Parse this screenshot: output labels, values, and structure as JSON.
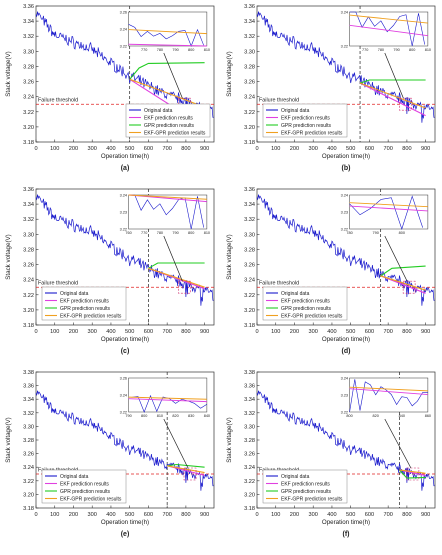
{
  "figure": {
    "panel_labels": [
      "(a)",
      "(b)",
      "(c)",
      "(d)",
      "(e)",
      "(f)"
    ],
    "threshold_label": "Failure threshold",
    "legend_entries": [
      "Original data",
      "EKF prediction results",
      "GPR prediction results",
      "EKF-GPR prediction results"
    ]
  },
  "colors": {
    "original": "#1a1acc",
    "ekf": "#e040e0",
    "gpr": "#22cc22",
    "ekf_gpr": "#f0a020",
    "threshold": "#e02020",
    "axis": "#333333"
  },
  "chart_data": [
    {
      "type": "line",
      "panel": "(a)",
      "xlabel": "Operation time(h)",
      "ylabel": "Stack voltage(V)",
      "xlim": [
        0,
        950
      ],
      "ylim": [
        3.18,
        3.36
      ],
      "xticks": [
        0,
        100,
        200,
        300,
        400,
        500,
        600,
        700,
        800,
        900
      ],
      "yticks": [
        3.18,
        3.2,
        3.22,
        3.24,
        3.26,
        3.28,
        3.3,
        3.32,
        3.34,
        3.36
      ],
      "threshold": 3.23,
      "prediction_start": 500,
      "legend": "bottom-right",
      "ekf": [
        [
          500,
          3.263
        ],
        [
          900,
          3.2
        ]
      ],
      "gpr": [
        [
          500,
          3.263
        ],
        [
          550,
          3.278
        ],
        [
          600,
          3.284
        ],
        [
          900,
          3.285
        ]
      ],
      "ekf_gpr": [
        [
          500,
          3.263
        ],
        [
          700,
          3.245
        ],
        [
          900,
          3.226
        ]
      ],
      "inset": {
        "xlim": [
          760,
          810
        ],
        "ylim": [
          3.22,
          3.26
        ],
        "xticks": [
          770,
          780,
          790,
          800,
          810
        ],
        "yticks": [
          3.22,
          3.24,
          3.26
        ]
      }
    },
    {
      "type": "line",
      "panel": "(b)",
      "xlabel": "Operation time(h)",
      "ylabel": "Stack voltage(V)",
      "xlim": [
        0,
        950
      ],
      "ylim": [
        3.18,
        3.36
      ],
      "xticks": [
        0,
        100,
        200,
        300,
        400,
        500,
        600,
        700,
        800,
        900
      ],
      "yticks": [
        3.18,
        3.2,
        3.22,
        3.24,
        3.26,
        3.28,
        3.3,
        3.32,
        3.34,
        3.36
      ],
      "threshold": 3.23,
      "prediction_start": 550,
      "legend": "bottom-left",
      "ekf": [
        [
          550,
          3.258
        ],
        [
          900,
          3.215
        ]
      ],
      "gpr": [
        [
          550,
          3.258
        ],
        [
          600,
          3.262
        ],
        [
          900,
          3.262
        ]
      ],
      "ekf_gpr": [
        [
          550,
          3.258
        ],
        [
          900,
          3.225
        ]
      ],
      "inset": {
        "xlim": [
          760,
          810
        ],
        "ylim": [
          3.22,
          3.24
        ],
        "xticks": [
          770,
          780,
          790,
          800,
          810
        ],
        "yticks": [
          3.22,
          3.24
        ]
      }
    },
    {
      "type": "line",
      "panel": "(c)",
      "xlabel": "Operation time(h)",
      "ylabel": "Stack voltage(V)",
      "xlim": [
        0,
        950
      ],
      "ylim": [
        3.18,
        3.36
      ],
      "xticks": [
        0,
        100,
        200,
        300,
        400,
        500,
        600,
        700,
        800,
        900
      ],
      "yticks": [
        3.18,
        3.2,
        3.22,
        3.24,
        3.26,
        3.28,
        3.3,
        3.32,
        3.34,
        3.36
      ],
      "threshold": 3.23,
      "prediction_start": 600,
      "legend": "bottom-left",
      "ekf": [
        [
          600,
          3.255
        ],
        [
          900,
          3.228
        ]
      ],
      "gpr": [
        [
          600,
          3.255
        ],
        [
          650,
          3.262
        ],
        [
          900,
          3.262
        ]
      ],
      "ekf_gpr": [
        [
          600,
          3.255
        ],
        [
          900,
          3.23
        ]
      ],
      "inset": {
        "xlim": [
          760,
          810
        ],
        "ylim": [
          3.22,
          3.24
        ],
        "xticks": [
          760,
          770,
          780,
          790,
          800,
          810
        ],
        "yticks": [
          3.22,
          3.23,
          3.24
        ]
      }
    },
    {
      "type": "line",
      "panel": "(d)",
      "xlabel": "Operation time(h)",
      "ylabel": "Stack voltage(V)",
      "xlim": [
        0,
        950
      ],
      "ylim": [
        3.18,
        3.36
      ],
      "xticks": [
        0,
        100,
        200,
        300,
        400,
        500,
        600,
        700,
        800,
        900
      ],
      "yticks": [
        3.18,
        3.2,
        3.22,
        3.24,
        3.26,
        3.28,
        3.3,
        3.32,
        3.34,
        3.36
      ],
      "threshold": 3.23,
      "prediction_start": 660,
      "legend": "bottom-left",
      "ekf": [
        [
          660,
          3.245
        ],
        [
          900,
          3.222
        ]
      ],
      "gpr": [
        [
          660,
          3.245
        ],
        [
          720,
          3.255
        ],
        [
          900,
          3.258
        ]
      ],
      "ekf_gpr": [
        [
          660,
          3.245
        ],
        [
          900,
          3.226
        ]
      ],
      "inset": {
        "xlim": [
          780,
          810
        ],
        "ylim": [
          3.22,
          3.24
        ],
        "xticks": [
          780,
          790,
          800
        ],
        "yticks": [
          3.22,
          3.23,
          3.24
        ]
      }
    },
    {
      "type": "line",
      "panel": "(e)",
      "xlabel": "Operation time(h)",
      "ylabel": "Stack voltage(V)",
      "xlim": [
        0,
        950
      ],
      "ylim": [
        3.18,
        3.38
      ],
      "xticks": [
        0,
        100,
        200,
        300,
        400,
        500,
        600,
        700,
        800,
        900
      ],
      "yticks": [
        3.18,
        3.2,
        3.22,
        3.24,
        3.26,
        3.28,
        3.3,
        3.32,
        3.34,
        3.36,
        3.38
      ],
      "threshold": 3.23,
      "prediction_start": 700,
      "legend": "bottom-left",
      "ekf": [
        [
          700,
          3.242
        ],
        [
          900,
          3.228
        ]
      ],
      "gpr": [
        [
          700,
          3.242
        ],
        [
          750,
          3.244
        ],
        [
          900,
          3.24
        ]
      ],
      "ekf_gpr": [
        [
          700,
          3.242
        ],
        [
          900,
          3.232
        ]
      ],
      "inset": {
        "xlim": [
          790,
          840
        ],
        "ylim": [
          3.22,
          3.26
        ],
        "xticks": [
          790,
          800,
          810,
          820,
          830,
          840
        ],
        "yticks": [
          3.22,
          3.24,
          3.26
        ]
      }
    },
    {
      "type": "line",
      "panel": "(f)",
      "xlabel": "Operation time(h)",
      "ylabel": "Stack voltage(V)",
      "xlim": [
        0,
        950
      ],
      "ylim": [
        3.18,
        3.38
      ],
      "xticks": [
        0,
        100,
        200,
        300,
        400,
        500,
        600,
        700,
        800,
        900
      ],
      "yticks": [
        3.18,
        3.2,
        3.22,
        3.24,
        3.26,
        3.28,
        3.3,
        3.32,
        3.34,
        3.36,
        3.38
      ],
      "threshold": 3.23,
      "prediction_start": 760,
      "legend": "bottom-left",
      "ekf": [
        [
          760,
          3.236
        ],
        [
          900,
          3.228
        ]
      ],
      "gpr": [
        [
          760,
          3.236
        ],
        [
          800,
          3.224
        ],
        [
          900,
          3.225
        ]
      ],
      "ekf_gpr": [
        [
          760,
          3.236
        ],
        [
          900,
          3.231
        ]
      ],
      "inset": {
        "xlim": [
          800,
          860
        ],
        "ylim": [
          3.22,
          3.24
        ],
        "xticks": [
          800,
          820,
          840,
          860
        ],
        "yticks": [
          3.22,
          3.23,
          3.24
        ]
      }
    }
  ]
}
